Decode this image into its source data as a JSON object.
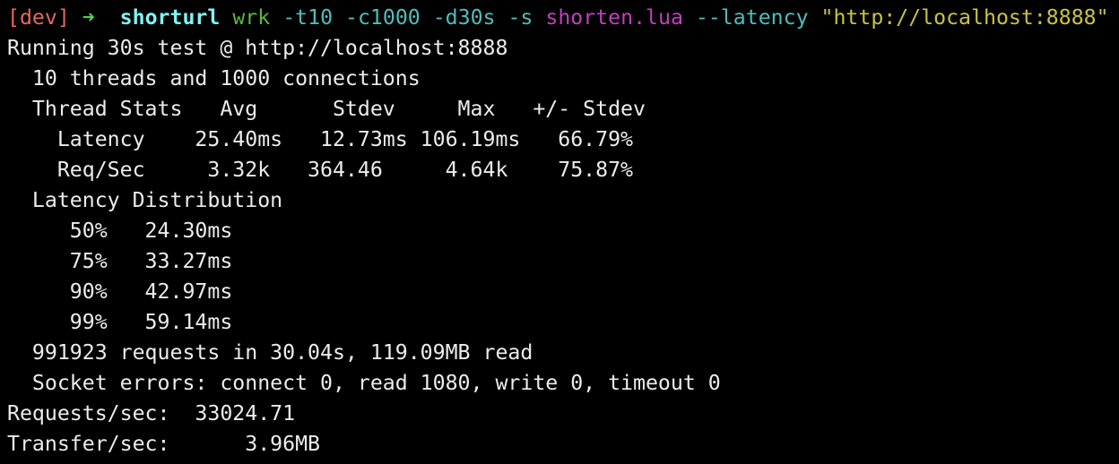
{
  "prompt": {
    "env": "[dev]",
    "arrow": "➜",
    "directory": "shorturl",
    "command": "wrk",
    "args1": "-t10 -c1000 -d30s -s",
    "script_file": "shorten.lua",
    "args2": "--latency",
    "url": "\"http://localhost:8888\""
  },
  "output": [
    "Running 30s test @ http://localhost:8888",
    "  10 threads and 1000 connections",
    "  Thread Stats   Avg      Stdev     Max   +/- Stdev",
    "    Latency    25.40ms   12.73ms 106.19ms   66.79%",
    "    Req/Sec     3.32k   364.46     4.64k    75.87%",
    "  Latency Distribution",
    "     50%   24.30ms",
    "     75%   33.27ms",
    "     90%   42.97ms",
    "     99%   59.14ms",
    "  991923 requests in 30.04s, 119.09MB read",
    "  Socket errors: connect 0, read 1080, write 0, timeout 0",
    "Requests/sec:  33024.71",
    "Transfer/sec:      3.96MB"
  ],
  "colors": {
    "background": "#000000",
    "text": "#ececec",
    "env": "#e5695f",
    "arrow": "#4fd14f",
    "directory": "#7ff3f3",
    "command": "#5cb83a",
    "args": "#4fbdbd",
    "script_file": "#c23fc0",
    "url": "#c9c247"
  }
}
